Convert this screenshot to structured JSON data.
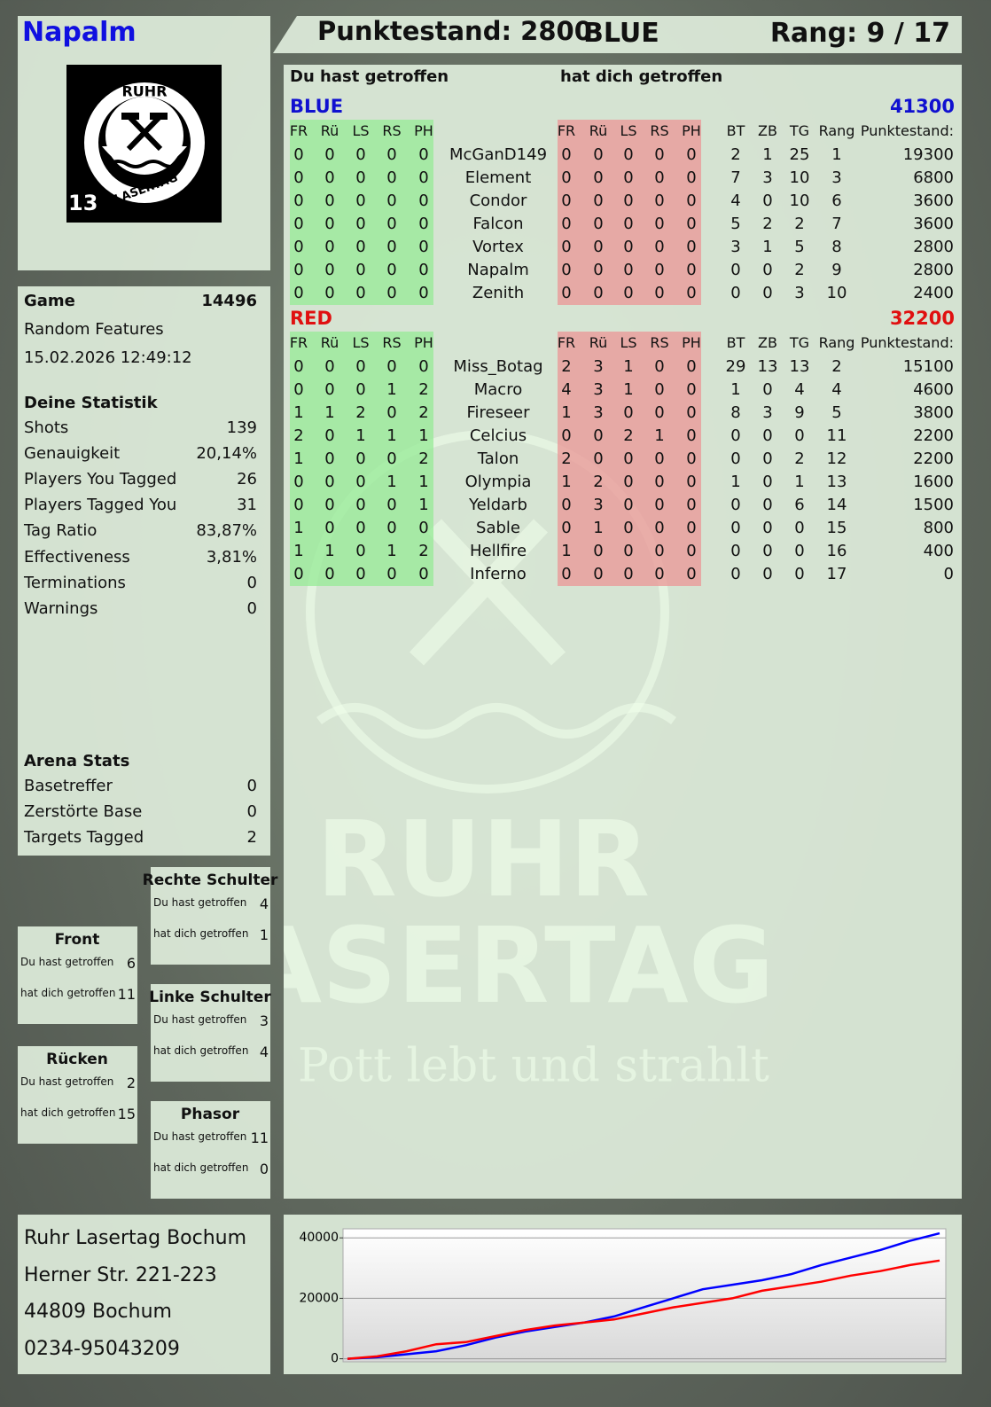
{
  "header": {
    "player": "Napalm",
    "score": "Punktestand: 2800",
    "team": "BLUE",
    "rank": "Rang: 9 / 17"
  },
  "logo": {
    "top": "RUHR",
    "bottom": "LASERTAG",
    "number": "13"
  },
  "watermark": {
    "line1": "RUHR",
    "line2": "LASERTAG",
    "tagline": "Der Pott lebt und strahlt"
  },
  "game": {
    "label": "Game",
    "id": "14496",
    "mode": "Random Features",
    "datetime": "15.02.2026 12:49:12"
  },
  "statistics": {
    "title": "Deine Statistik",
    "rows": [
      [
        "Shots",
        "139"
      ],
      [
        "Genauigkeit",
        "20,14%"
      ],
      [
        "Players You Tagged",
        "26"
      ],
      [
        "Players Tagged You",
        "31"
      ],
      [
        "Tag Ratio",
        "83,87%"
      ],
      [
        "Effectiveness",
        "3,81%"
      ],
      [
        "Terminations",
        "0"
      ],
      [
        "Warnings",
        "0"
      ]
    ]
  },
  "arena": {
    "title": "Arena Stats",
    "rows": [
      [
        "Basetreffer",
        "0"
      ],
      [
        "Zerstörte Base",
        "0"
      ],
      [
        "Targets Tagged",
        "2"
      ]
    ]
  },
  "zones": [
    {
      "name": "Rechte Schulter",
      "rows": [
        [
          "Du hast getroffen",
          "4"
        ],
        [
          "hat dich getroffen",
          "1"
        ]
      ]
    },
    {
      "name": "Front",
      "rows": [
        [
          "Du hast getroffen",
          "6"
        ],
        [
          "hat dich getroffen",
          "11"
        ]
      ]
    },
    {
      "name": "Linke Schulter",
      "rows": [
        [
          "Du hast getroffen",
          "3"
        ],
        [
          "hat dich getroffen",
          "4"
        ]
      ]
    },
    {
      "name": "Rücken",
      "rows": [
        [
          "Du hast getroffen",
          "2"
        ],
        [
          "hat dich getroffen",
          "15"
        ]
      ]
    },
    {
      "name": "Phasor",
      "rows": [
        [
          "Du hast getroffen",
          "11"
        ],
        [
          "hat dich getroffen",
          "0"
        ]
      ]
    }
  ],
  "address": [
    "Ruhr Lasertag Bochum",
    "Herner Str. 221-223",
    "44809 Bochum",
    "0234-95043209"
  ],
  "table": {
    "given_title": "Du hast getroffen",
    "taken_title": "hat dich getroffen",
    "teams": [
      {
        "name": "BLUE",
        "score": "41300",
        "color": "#1010d0",
        "columns": [
          "FR",
          "Rü",
          "LS",
          "RS",
          "PH",
          "FR",
          "Rü",
          "LS",
          "RS",
          "PH",
          "BT",
          "ZB",
          "TG",
          "Rang",
          "Punktestand:"
        ],
        "rows": [
          [
            0,
            0,
            0,
            0,
            0,
            "McGanD149",
            0,
            0,
            0,
            0,
            0,
            2,
            1,
            25,
            1,
            19300
          ],
          [
            0,
            0,
            0,
            0,
            0,
            "Element",
            0,
            0,
            0,
            0,
            0,
            7,
            3,
            10,
            3,
            6800
          ],
          [
            0,
            0,
            0,
            0,
            0,
            "Condor",
            0,
            0,
            0,
            0,
            0,
            4,
            0,
            10,
            6,
            3600
          ],
          [
            0,
            0,
            0,
            0,
            0,
            "Falcon",
            0,
            0,
            0,
            0,
            0,
            5,
            2,
            2,
            7,
            3600
          ],
          [
            0,
            0,
            0,
            0,
            0,
            "Vortex",
            0,
            0,
            0,
            0,
            0,
            3,
            1,
            5,
            8,
            2800
          ],
          [
            0,
            0,
            0,
            0,
            0,
            "Napalm",
            0,
            0,
            0,
            0,
            0,
            0,
            0,
            2,
            9,
            2800
          ],
          [
            0,
            0,
            0,
            0,
            0,
            "Zenith",
            0,
            0,
            0,
            0,
            0,
            0,
            0,
            3,
            10,
            2400
          ]
        ]
      },
      {
        "name": "RED",
        "score": "32200",
        "color": "#e01010",
        "columns": [
          "FR",
          "Rü",
          "LS",
          "RS",
          "PH",
          "FR",
          "Rü",
          "LS",
          "RS",
          "PH",
          "BT",
          "ZB",
          "TG",
          "Rang",
          "Punktestand:"
        ],
        "rows": [
          [
            0,
            0,
            0,
            0,
            0,
            "Miss_Botag",
            2,
            3,
            1,
            0,
            0,
            29,
            13,
            13,
            2,
            15100
          ],
          [
            0,
            0,
            0,
            1,
            2,
            "Macro",
            4,
            3,
            1,
            0,
            0,
            1,
            0,
            4,
            4,
            4600
          ],
          [
            1,
            1,
            2,
            0,
            2,
            "Fireseer",
            1,
            3,
            0,
            0,
            0,
            8,
            3,
            9,
            5,
            3800
          ],
          [
            2,
            0,
            1,
            1,
            1,
            "Celcius",
            0,
            0,
            2,
            1,
            0,
            0,
            0,
            0,
            11,
            2200
          ],
          [
            1,
            0,
            0,
            0,
            2,
            "Talon",
            2,
            0,
            0,
            0,
            0,
            0,
            0,
            2,
            12,
            2200
          ],
          [
            0,
            0,
            0,
            1,
            1,
            "Olympia",
            1,
            2,
            0,
            0,
            0,
            1,
            0,
            1,
            13,
            1600
          ],
          [
            0,
            0,
            0,
            0,
            1,
            "Yeldarb",
            0,
            3,
            0,
            0,
            0,
            0,
            0,
            6,
            14,
            1500
          ],
          [
            1,
            0,
            0,
            0,
            0,
            "Sable",
            0,
            1,
            0,
            0,
            0,
            0,
            0,
            0,
            15,
            800
          ],
          [
            1,
            1,
            0,
            1,
            2,
            "Hellfire",
            1,
            0,
            0,
            0,
            0,
            0,
            0,
            0,
            16,
            400
          ],
          [
            0,
            0,
            0,
            0,
            0,
            "Inferno",
            0,
            0,
            0,
            0,
            0,
            0,
            0,
            0,
            17,
            0
          ]
        ]
      }
    ]
  },
  "chart_data": {
    "type": "line",
    "categories": [
      null,
      null,
      null,
      null,
      null,
      null,
      null,
      null,
      null,
      null,
      null,
      null,
      null,
      null,
      null,
      null,
      null,
      null,
      null,
      null,
      null
    ],
    "series": [
      {
        "color": "#0000ff",
        "values": [
          0,
          500,
          1500,
          2500,
          4500,
          7000,
          9000,
          10500,
          12000,
          14000,
          17000,
          20000,
          23000,
          24500,
          26000,
          28000,
          31000,
          33500,
          36000,
          39000,
          41500
        ]
      },
      {
        "color": "#ff0000",
        "values": [
          0,
          800,
          2500,
          4800,
          5500,
          7500,
          9500,
          11000,
          12000,
          13000,
          15000,
          17000,
          18500,
          20000,
          22500,
          24000,
          25500,
          27500,
          29000,
          31000,
          32500
        ]
      }
    ],
    "ylim": [
      -1000,
      43000
    ],
    "yticks": [
      0,
      20000,
      40000
    ],
    "grid": true
  }
}
